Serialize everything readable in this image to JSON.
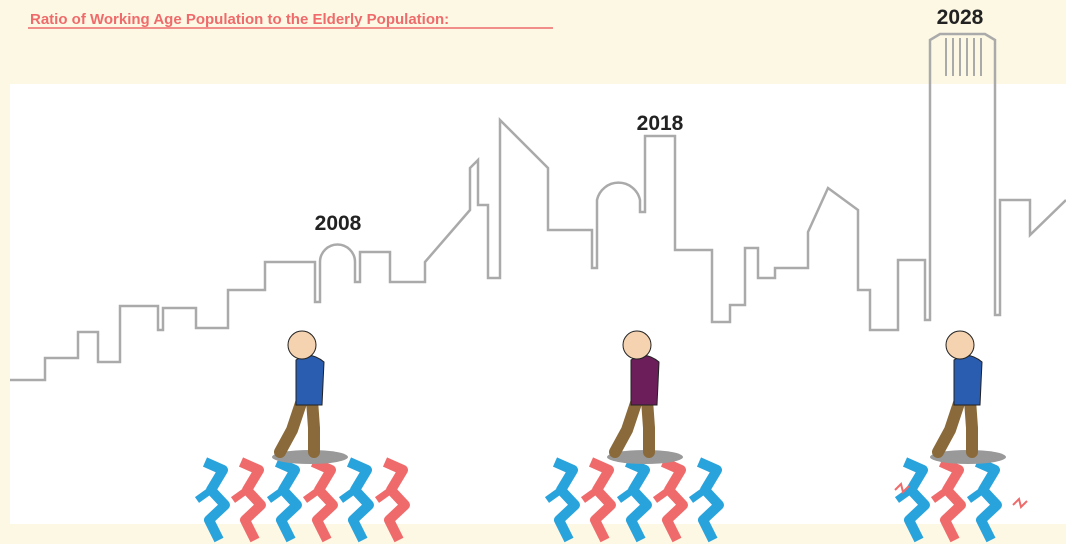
{
  "title": "Ratio of Working Age Population to the Elderly Population:",
  "scenes": [
    {
      "year": "2008"
    },
    {
      "year": "2018"
    },
    {
      "year": "2028"
    }
  ]
}
